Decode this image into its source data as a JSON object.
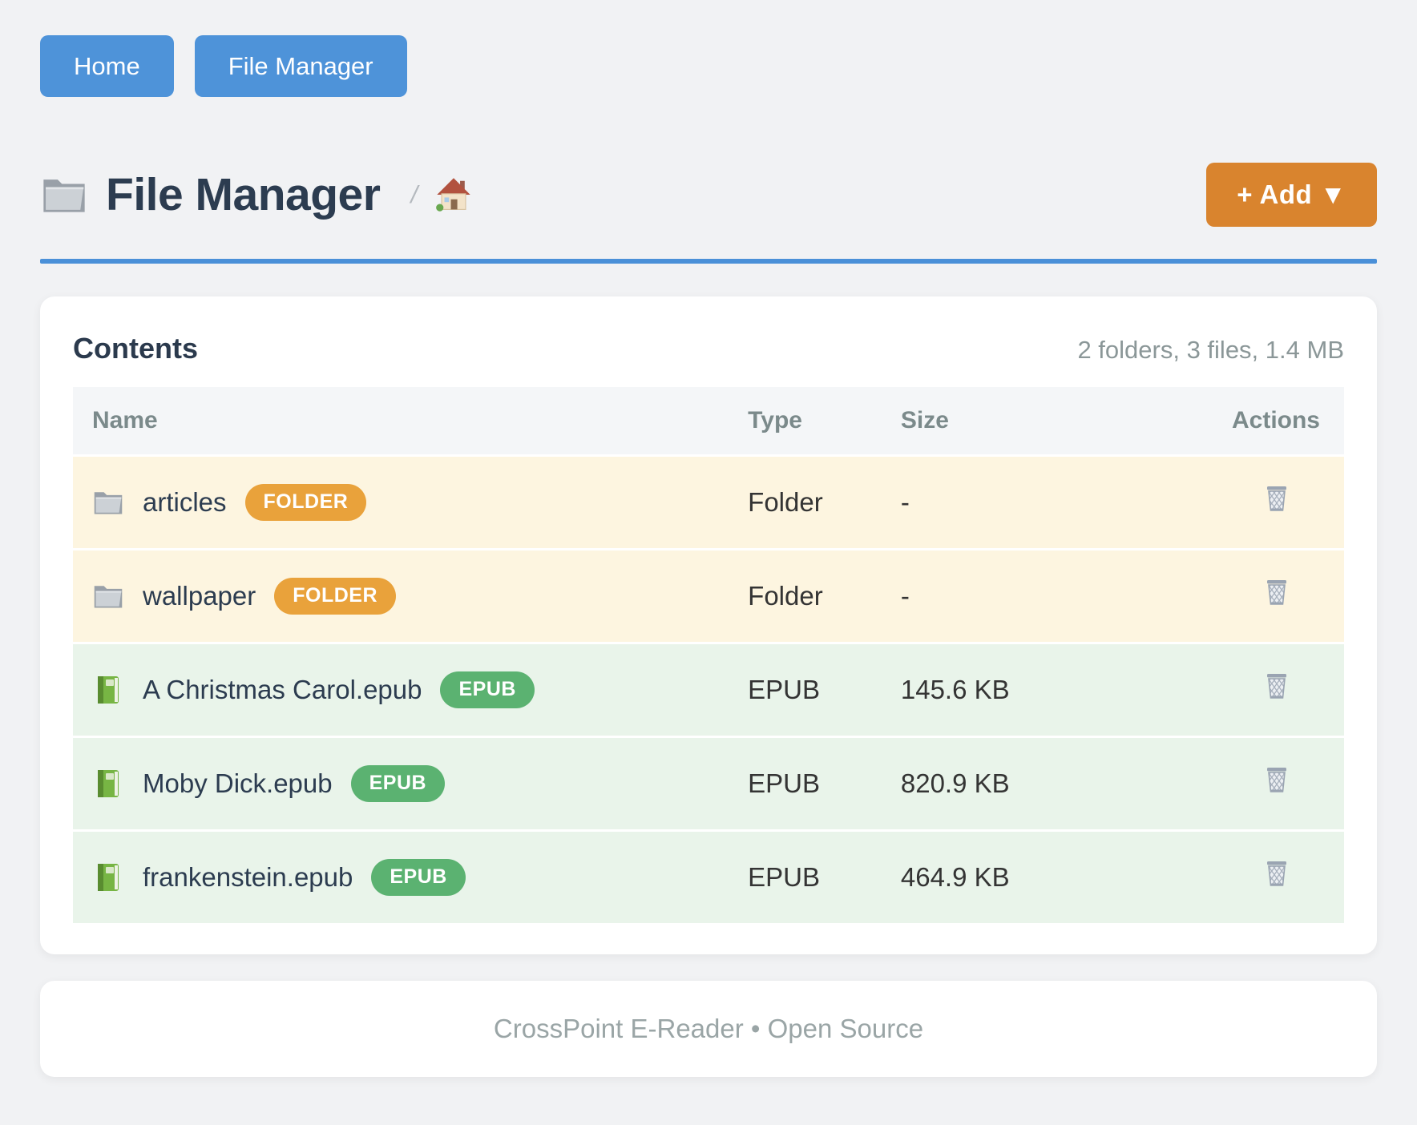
{
  "nav": {
    "buttons": [
      {
        "label": "Home"
      },
      {
        "label": "File Manager"
      }
    ]
  },
  "header": {
    "icon": "folder-icon",
    "title": "File Manager",
    "breadcrumb_separator": "/",
    "breadcrumb_home_icon": "house-icon",
    "add_button_label": "+ Add ▼"
  },
  "contents_card": {
    "title": "Contents",
    "summary": "2 folders, 3 files, 1.4 MB",
    "columns": [
      "Name",
      "Type",
      "Size",
      "Actions"
    ],
    "row_action_icon": "trash-icon",
    "rows": [
      {
        "name": "articles",
        "badge": "FOLDER",
        "kind": "folder",
        "icon": "folder-icon",
        "type": "Folder",
        "size": "-"
      },
      {
        "name": "wallpaper",
        "badge": "FOLDER",
        "kind": "folder",
        "icon": "folder-icon",
        "type": "Folder",
        "size": "-"
      },
      {
        "name": "A Christmas Carol.epub",
        "badge": "EPUB",
        "kind": "epub",
        "icon": "book-icon",
        "type": "EPUB",
        "size": "145.6 KB"
      },
      {
        "name": "Moby Dick.epub",
        "badge": "EPUB",
        "kind": "epub",
        "icon": "book-icon",
        "type": "EPUB",
        "size": "820.9 KB"
      },
      {
        "name": "frankenstein.epub",
        "badge": "EPUB",
        "kind": "epub",
        "icon": "book-icon",
        "type": "EPUB",
        "size": "464.9 KB"
      }
    ]
  },
  "footer": {
    "text": "CrossPoint E-Reader • Open Source"
  },
  "colors": {
    "nav_blue": "#4e93d9",
    "divider_blue": "#4a90d8",
    "add_orange": "#d9842e",
    "folder_badge_orange": "#e9a23b",
    "epub_badge_green": "#5bb271",
    "folder_row_bg": "#fdf5e0",
    "epub_row_bg": "#e9f4ea"
  }
}
